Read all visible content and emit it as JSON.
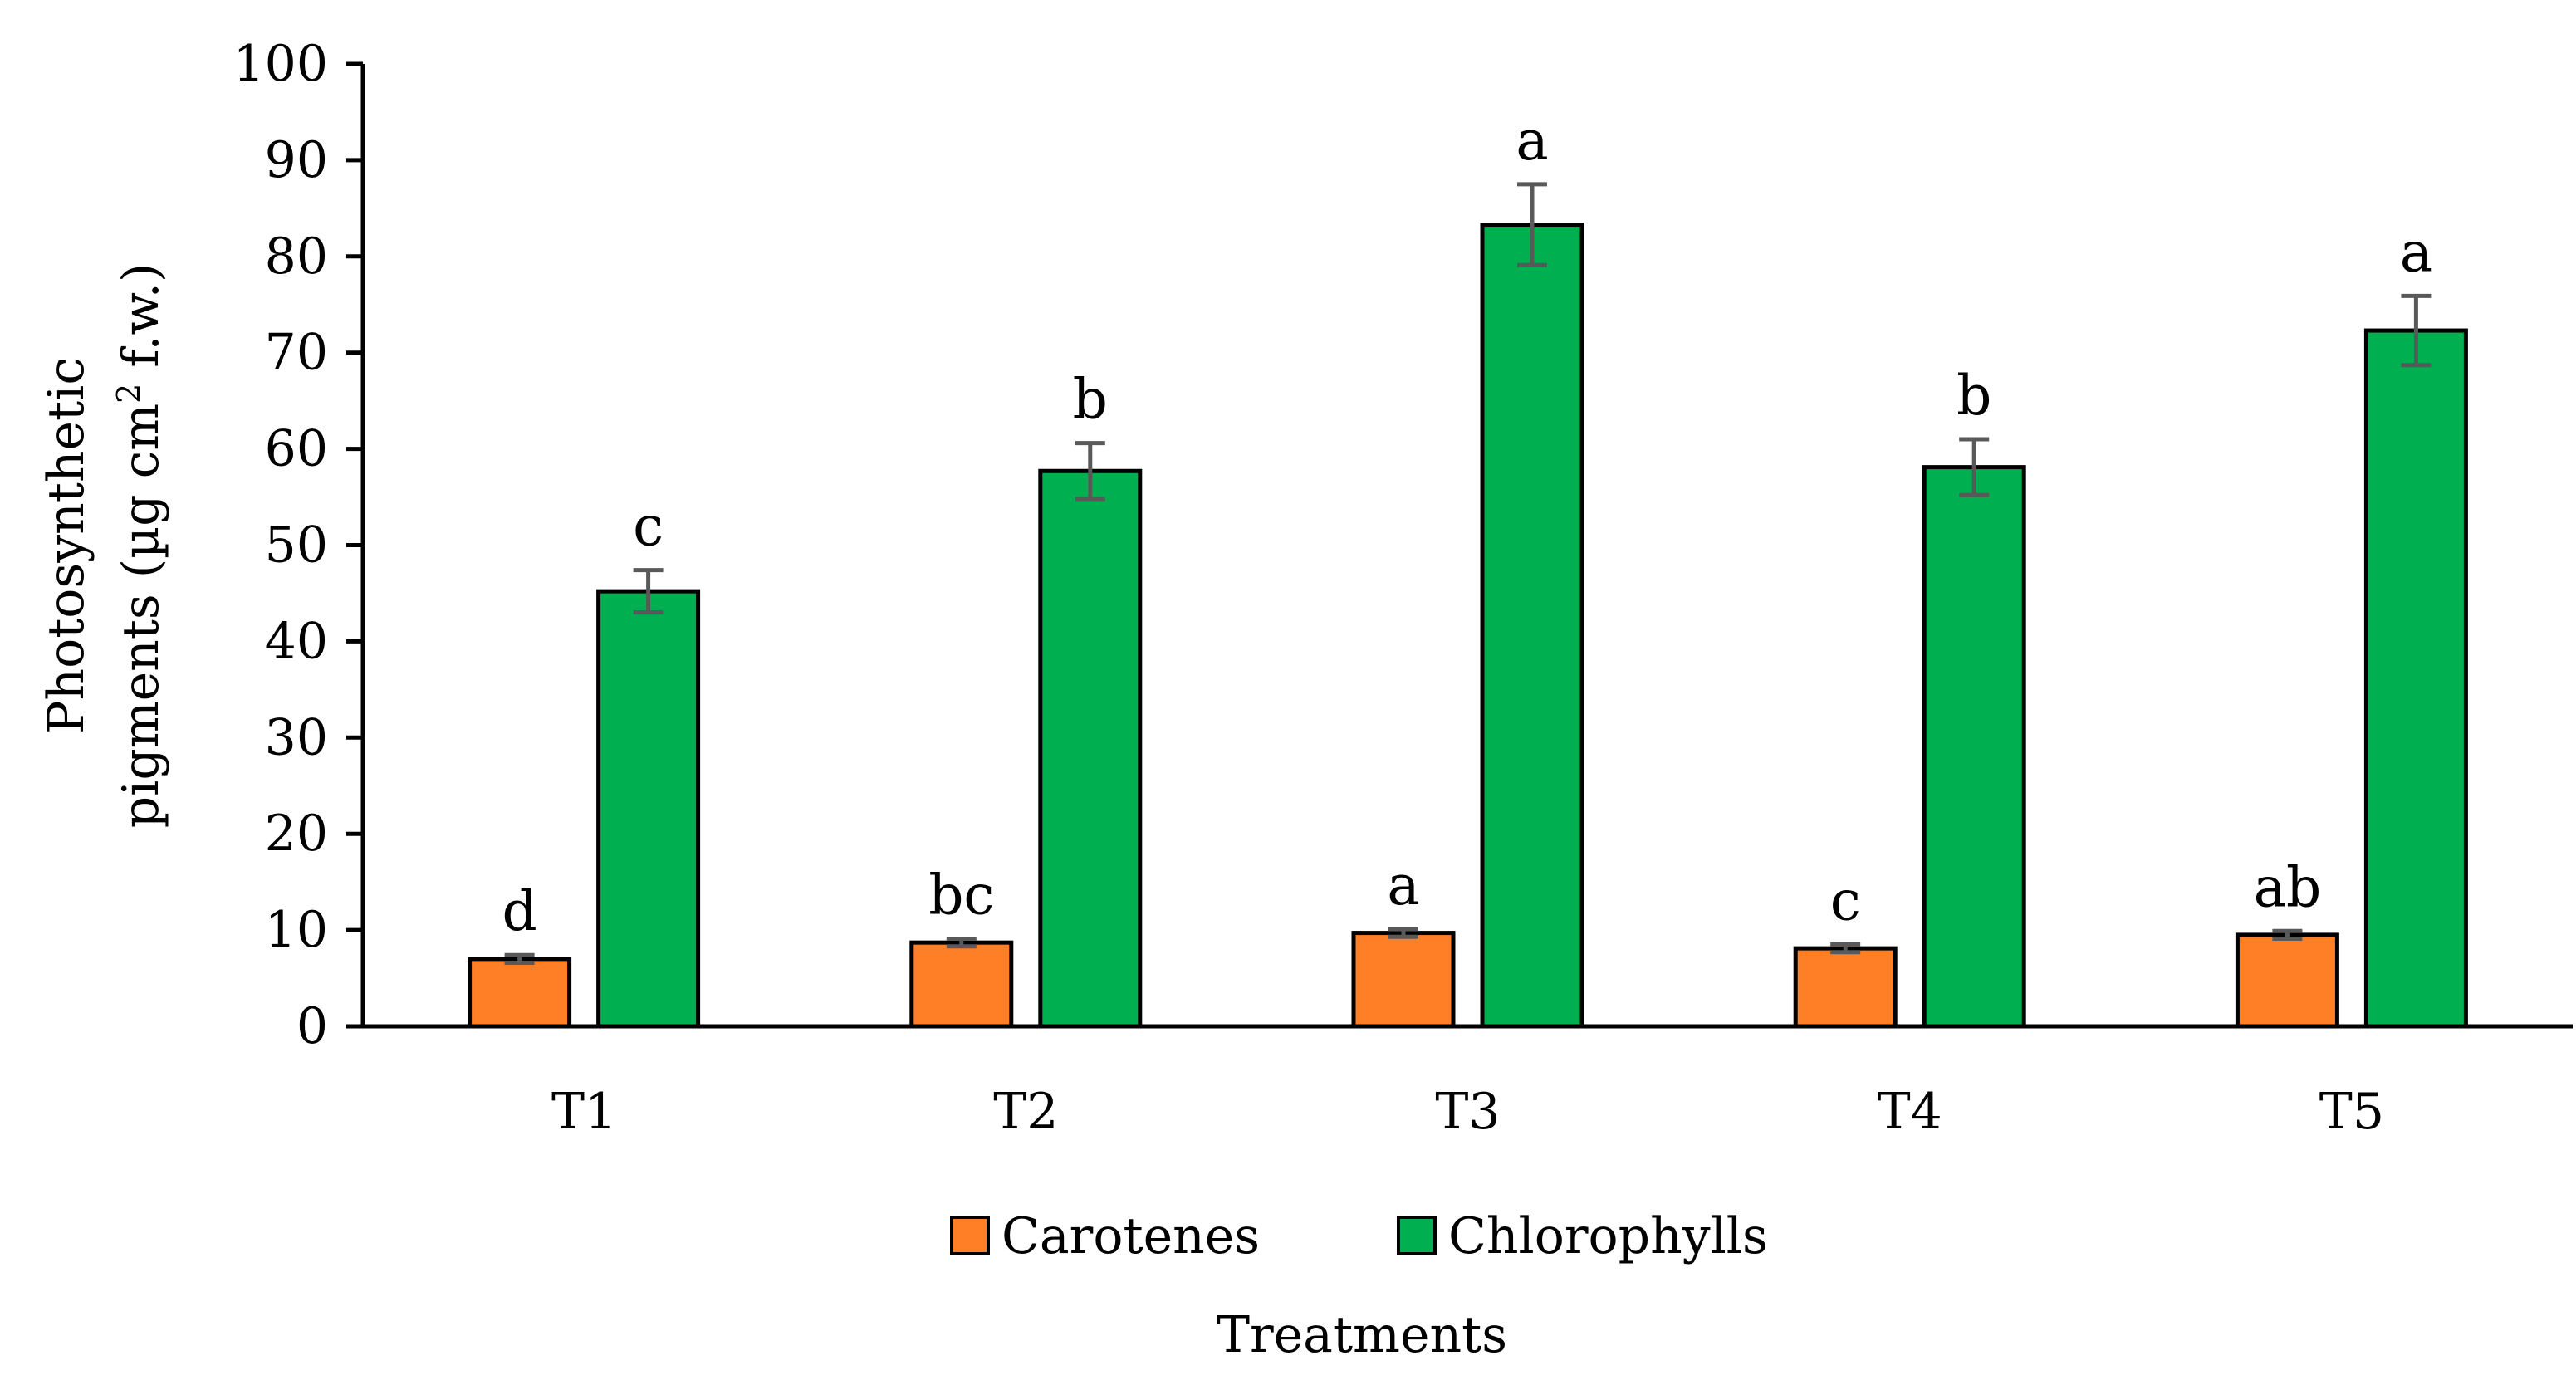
{
  "chart_data": {
    "type": "bar",
    "title": "",
    "xlabel": "Treatments",
    "ylabel_line1": "Photosynthetic",
    "ylabel_line2_pre": "pigments (µg cm",
    "ylabel_line2_sup": "2",
    "ylabel_line2_post": " f.w.)",
    "ylim": [
      0,
      100
    ],
    "yticks": [
      0,
      10,
      20,
      30,
      40,
      50,
      60,
      70,
      80,
      90,
      100
    ],
    "categories": [
      "T1",
      "T2",
      "T3",
      "T4",
      "T5"
    ],
    "series": [
      {
        "name": "Carotenes",
        "color": "#FF7F27",
        "values": [
          7.0,
          8.7,
          9.7,
          8.1,
          9.5
        ],
        "errors": [
          0.4,
          0.4,
          0.4,
          0.4,
          0.4
        ],
        "letters": [
          "d",
          "bc",
          "a",
          "c",
          "ab"
        ]
      },
      {
        "name": "Chlorophylls",
        "color": "#00B050",
        "values": [
          45.2,
          57.7,
          83.3,
          58.1,
          72.3
        ],
        "errors": [
          2.2,
          2.9,
          4.2,
          2.9,
          3.6
        ],
        "letters": [
          "c",
          "b",
          "a",
          "b",
          "a"
        ]
      }
    ],
    "legend_position": "bottom",
    "grid": false,
    "error_bar_color": "#595959"
  }
}
